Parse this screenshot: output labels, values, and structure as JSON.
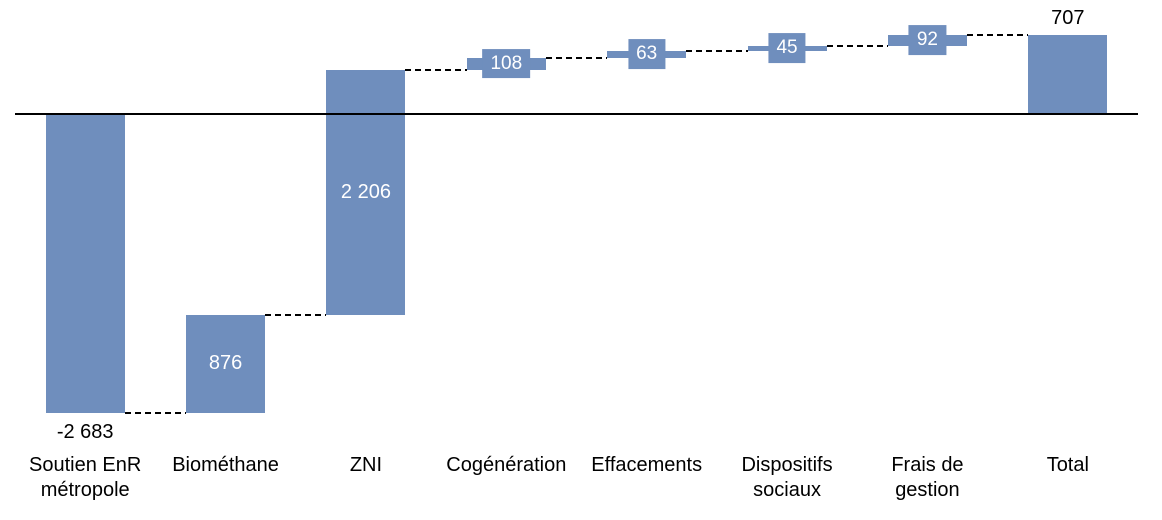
{
  "chart_data": {
    "type": "bar",
    "subtype": "waterfall",
    "title": "",
    "xlabel": "",
    "ylabel": "",
    "categories": [
      "Soutien EnR\nmétropole",
      "Biométhane",
      "ZNI",
      "Cogénération",
      "Effacements",
      "Dispositifs\nsociaux",
      "Frais de\ngestion",
      "Total"
    ],
    "values": [
      -2683,
      876,
      2206,
      108,
      63,
      45,
      92,
      707
    ],
    "labels": [
      "-2 683",
      "876",
      "2 206",
      "108",
      "63",
      "45",
      "92",
      "707"
    ],
    "cumulative_start": [
      0,
      -2683,
      -1807,
      399,
      507,
      570,
      615,
      0
    ],
    "cumulative_end": [
      -2683,
      -1807,
      399,
      507,
      570,
      615,
      707,
      707
    ],
    "is_total": [
      false,
      false,
      false,
      false,
      false,
      false,
      false,
      true
    ],
    "label_placement": [
      "below-outside",
      "inside",
      "inside",
      "badge",
      "badge",
      "badge",
      "badge",
      "above-outside"
    ],
    "ylim": [
      -2683,
      707
    ],
    "grid": false,
    "legend": false,
    "axis": {
      "zero_line": true
    },
    "connector_style": "dashed",
    "colors": {
      "bar": "#6F8EBD",
      "label_inside": "#FFFFFF",
      "label_outside": "#000000",
      "connector": "#000000",
      "axis_line": "#000000",
      "background": "#FFFFFF"
    }
  }
}
